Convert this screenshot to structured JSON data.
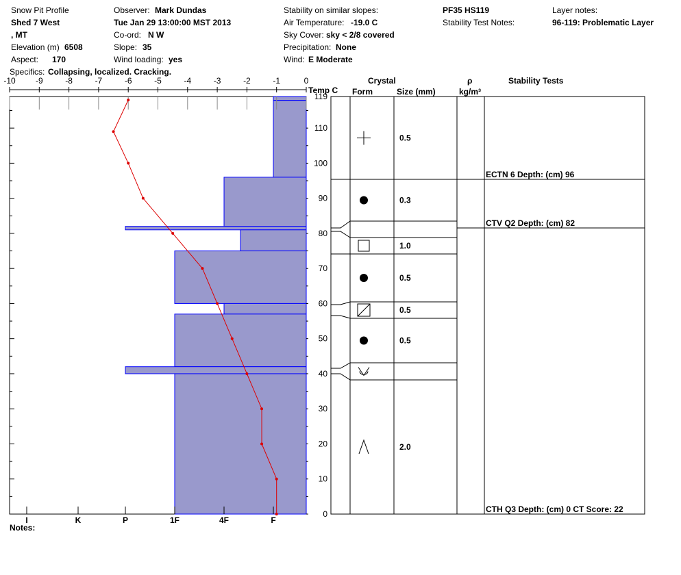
{
  "header": {
    "title": "Snow Pit Profile",
    "location": "Shed 7 West",
    "state": ", MT",
    "elevation_label": "Elevation (m)",
    "elevation": "6508",
    "aspect_label": "Aspect:",
    "aspect": "170",
    "specifics_label": "Specifics:",
    "specifics": "Collapsing, localized. Cracking.",
    "observer_label": "Observer:",
    "observer": "Mark Dundas",
    "datetime": "Tue Jan 29 13:00:00 MST 2013",
    "coord_label": "Co-ord:",
    "coord": "N  W",
    "slope_label": "Slope:",
    "slope": "35",
    "wind_loading_label": "Wind loading:",
    "wind_loading": "yes",
    "stability_label": "Stability on similar slopes:",
    "air_temp_label": "Air Temperature:",
    "air_temp": "-19.0 C",
    "sky_label": "Sky Cover:",
    "sky": "sky < 2/8 covered",
    "precip_label": "Precipitation:",
    "precip": "None",
    "wind_label": "Wind:",
    "wind": "E Moderate",
    "pit_id": "PF35 HS119",
    "stability_notes_label": "Stability Test Notes:",
    "layer_notes_label": "Layer notes:",
    "layer_notes": "96-119: Problematic Layer"
  },
  "notes_label": "Notes:",
  "columns": {
    "temp": "Temp C",
    "crystal": "Crystal",
    "form": "Form",
    "size": "Size (mm)",
    "rho": "ρ",
    "density_unit": "kg/m³",
    "stability": "Stability Tests"
  },
  "colors": {
    "hardness_fill": "#9999cc",
    "hardness_edge": "#0000ff",
    "temp_line": "#dd0000"
  },
  "chart_data": {
    "type": "snow-profile",
    "height_axis": {
      "label": "",
      "min": 0,
      "max": 119,
      "ticks": [
        0,
        10,
        20,
        30,
        40,
        50,
        60,
        70,
        80,
        90,
        100,
        110,
        119
      ]
    },
    "temp_axis": {
      "min": -10,
      "max": 0,
      "ticks": [
        -10,
        -9,
        -8,
        -7,
        -6,
        -5,
        -4,
        -3,
        -2,
        -1,
        0
      ]
    },
    "hardness_axis": {
      "ticks": [
        "I",
        "K",
        "P",
        "1F",
        "4F",
        "F"
      ]
    },
    "temperature_profile": [
      {
        "h": 118,
        "t": -6.0
      },
      {
        "h": 109,
        "t": -6.5
      },
      {
        "h": 100,
        "t": -6.0
      },
      {
        "h": 90,
        "t": -5.5
      },
      {
        "h": 80,
        "t": -4.5
      },
      {
        "h": 70,
        "t": -3.5
      },
      {
        "h": 60,
        "t": -3.0
      },
      {
        "h": 50,
        "t": -2.5
      },
      {
        "h": 40,
        "t": -2.0
      },
      {
        "h": 30,
        "t": -1.5
      },
      {
        "h": 20,
        "t": -1.5
      },
      {
        "h": 10,
        "t": -1.0
      },
      {
        "h": 0,
        "t": -1.0
      }
    ],
    "hardness_layers": [
      {
        "top": 119,
        "bottom": 117.9,
        "hardness": "F"
      },
      {
        "top": 117.9,
        "bottom": 96,
        "hardness": "F"
      },
      {
        "top": 96,
        "bottom": 82,
        "hardness": "4F"
      },
      {
        "top": 82,
        "bottom": 81,
        "hardness": "P"
      },
      {
        "top": 81,
        "bottom": 75,
        "hardness": "4F-"
      },
      {
        "top": 75,
        "bottom": 60,
        "hardness": "1F"
      },
      {
        "top": 60,
        "bottom": 57,
        "hardness": "4F"
      },
      {
        "top": 57,
        "bottom": 42,
        "hardness": "1F"
      },
      {
        "top": 42,
        "bottom": 40,
        "hardness": "P"
      },
      {
        "top": 40,
        "bottom": 0,
        "hardness": "1F"
      }
    ],
    "crystal_layers": [
      {
        "form": "plus",
        "size": "0.5"
      },
      {
        "form": "dot",
        "size": "0.3"
      },
      {
        "form": "",
        "size": ""
      },
      {
        "form": "square",
        "size": "1.0"
      },
      {
        "form": "dot",
        "size": "0.5"
      },
      {
        "form": "slash-square",
        "size": "0.5"
      },
      {
        "form": "dot",
        "size": "0.5"
      },
      {
        "form": "surface-hoar",
        "size": ""
      },
      {
        "form": "caret",
        "size": "2.0"
      }
    ],
    "stability_tests": [
      {
        "text": "ECTN 6   Depth: (cm) 96"
      },
      {
        "text": "CTV Q2 Depth: (cm) 82"
      },
      {
        "text": "CTH Q3 Depth: (cm) 0 CT Score: 22"
      }
    ]
  }
}
